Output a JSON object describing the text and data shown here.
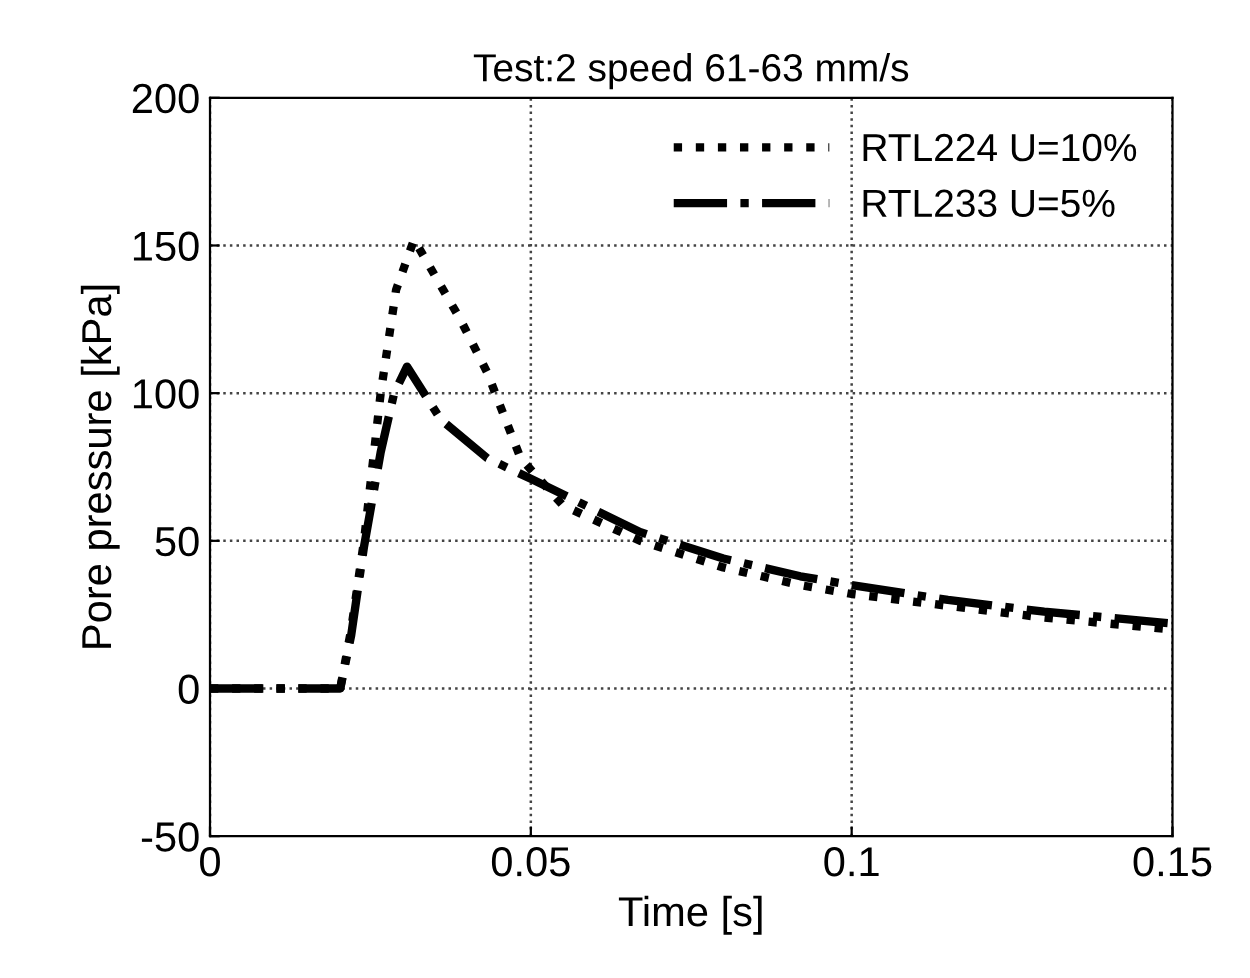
{
  "chart_data": {
    "type": "line",
    "title": "Test:2 speed 61-63 mm/s",
    "xlabel": "Time [s]",
    "ylabel": "Pore pressure [kPa]",
    "xlim": [
      0,
      0.15
    ],
    "ylim": [
      -50,
      200
    ],
    "xticks": [
      0,
      0.05,
      0.1,
      0.15
    ],
    "yticks": [
      -50,
      0,
      50,
      100,
      150,
      200
    ],
    "grid": true,
    "legend": "top right",
    "marker": "none",
    "series": [
      {
        "name": "RTL224 U=10%",
        "color": "#000000",
        "line_style": "dotted",
        "x": [
          0,
          0.0203,
          0.022,
          0.024,
          0.0266,
          0.029,
          0.0318,
          0.035,
          0.039,
          0.0432,
          0.0484,
          0.055,
          0.067,
          0.08,
          0.092,
          0.1,
          0.115,
          0.13,
          0.15
        ],
        "values": [
          0,
          0,
          20,
          50,
          100,
          135,
          152,
          140,
          125,
          107,
          78,
          62,
          50,
          41,
          35,
          32,
          28,
          24,
          20
        ]
      },
      {
        "name": "RTL233 U=5%",
        "color": "#000000",
        "line_style": "dashdot",
        "x": [
          0,
          0.0203,
          0.022,
          0.024,
          0.0266,
          0.0287,
          0.0307,
          0.036,
          0.0432,
          0.05,
          0.067,
          0.08,
          0.092,
          0.1,
          0.115,
          0.13,
          0.15
        ],
        "values": [
          0,
          0,
          18,
          48,
          80,
          100,
          109,
          91,
          78,
          71,
          53,
          44,
          38,
          35,
          30,
          26,
          22
        ]
      }
    ]
  }
}
